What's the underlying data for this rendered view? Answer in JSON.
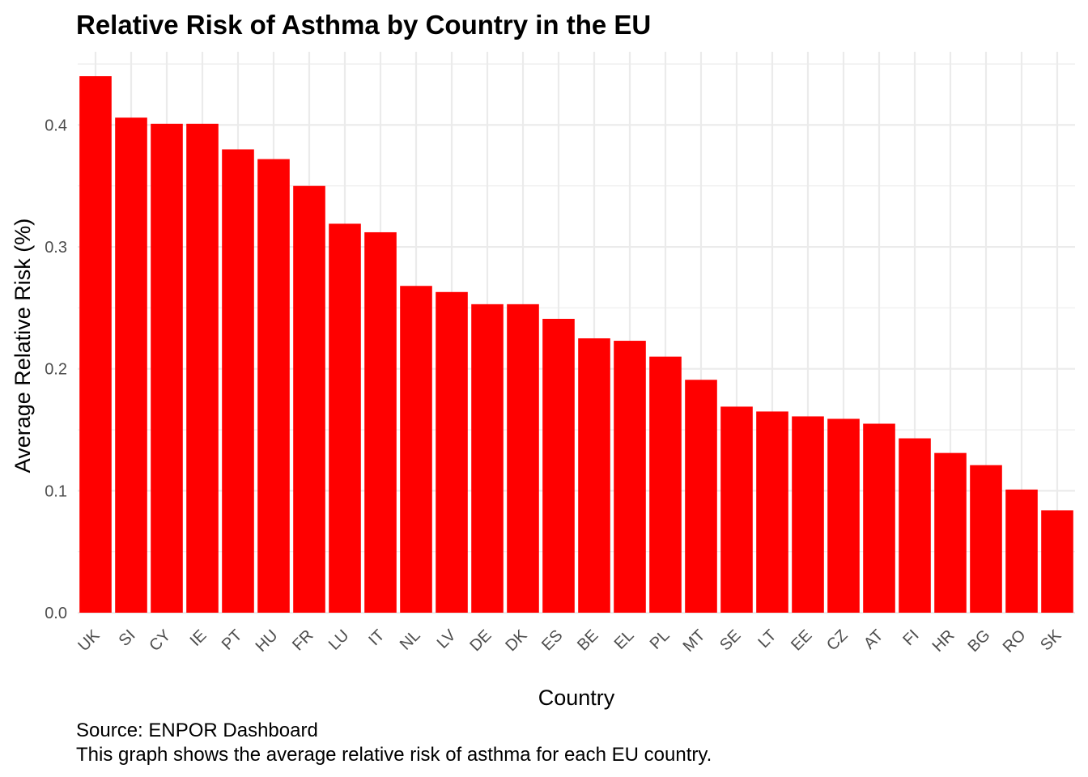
{
  "chart_data": {
    "type": "bar",
    "title": "Relative Risk of Asthma by Country in the EU",
    "xlabel": "Country",
    "ylabel": "Average Relative Risk (%)",
    "caption_lines": [
      "Source: ENPOR Dashboard",
      "This graph shows the average relative risk of asthma for each EU country."
    ],
    "categories": [
      "UK",
      "SI",
      "CY",
      "IE",
      "PT",
      "HU",
      "FR",
      "LU",
      "IT",
      "NL",
      "LV",
      "DE",
      "DK",
      "ES",
      "BE",
      "EL",
      "PL",
      "MT",
      "SE",
      "LT",
      "EE",
      "CZ",
      "AT",
      "FI",
      "HR",
      "BG",
      "RO",
      "SK"
    ],
    "values": [
      0.44,
      0.406,
      0.401,
      0.401,
      0.38,
      0.372,
      0.35,
      0.319,
      0.312,
      0.268,
      0.263,
      0.253,
      0.253,
      0.241,
      0.225,
      0.223,
      0.21,
      0.191,
      0.169,
      0.165,
      0.161,
      0.159,
      0.155,
      0.143,
      0.131,
      0.121,
      0.101,
      0.084
    ],
    "ylim": [
      0,
      0.46
    ],
    "yticks": [
      "0.0",
      "0.1",
      "0.2",
      "0.3",
      "0.4"
    ],
    "grid": true,
    "legend": "none",
    "bar_color": "#ff0000"
  }
}
